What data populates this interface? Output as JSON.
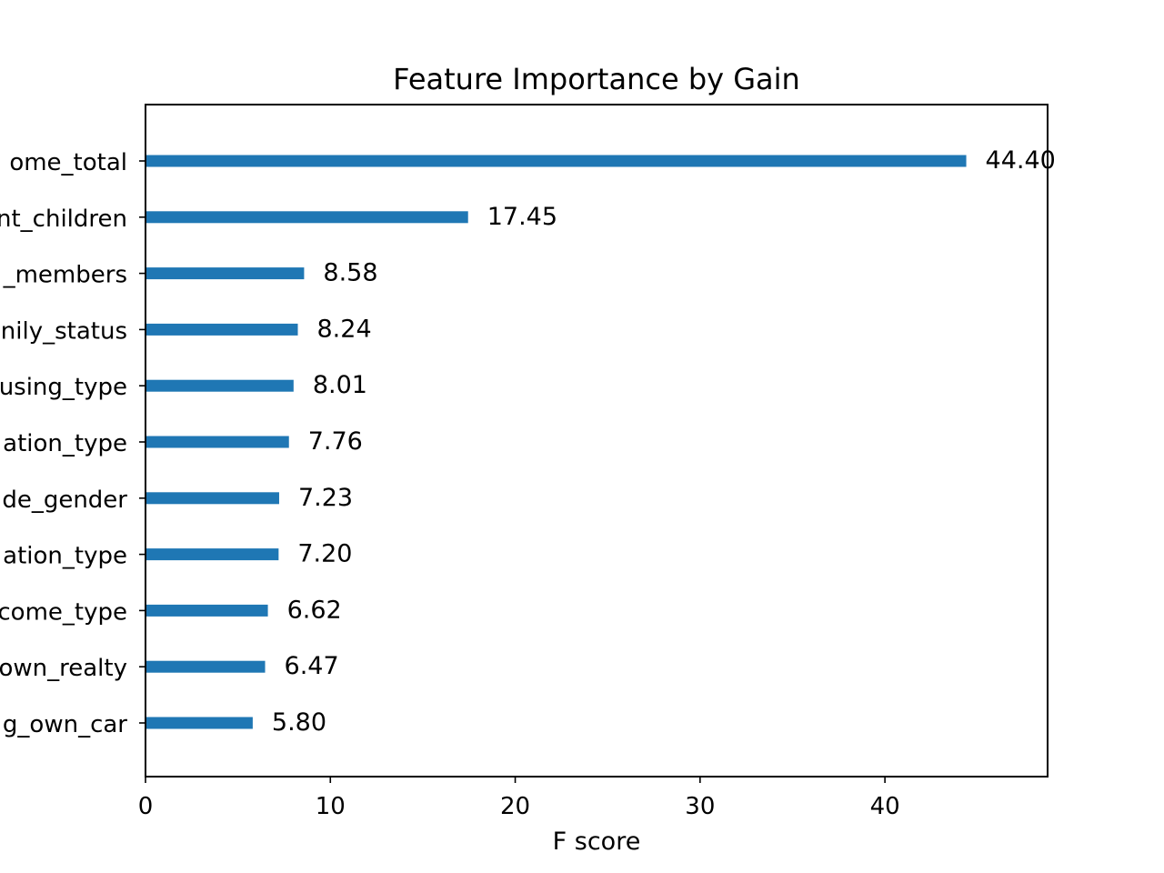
{
  "chart_data": {
    "type": "bar",
    "orientation": "horizontal",
    "title": "Feature Importance by Gain",
    "xlabel": "F score",
    "ylabel": "",
    "xlim": [
      0,
      48.8
    ],
    "xticks": [
      0,
      10,
      20,
      30,
      40
    ],
    "xtick_labels": [
      "0",
      "10",
      "20",
      "30",
      "40"
    ],
    "categories": [
      "ome_total",
      "nt_children",
      "_members",
      "nily_status",
      "using_type",
      "ation_type",
      "de_gender",
      "ation_type",
      "come_type",
      "own_realty",
      "g_own_car"
    ],
    "values": [
      44.4,
      17.45,
      8.58,
      8.24,
      8.01,
      7.76,
      7.23,
      7.2,
      6.62,
      6.47,
      5.8
    ],
    "value_labels": [
      "44.40",
      "17.45",
      "8.58",
      "8.24",
      "8.01",
      "7.76",
      "7.23",
      "7.20",
      "6.62",
      "6.47",
      "5.80"
    ],
    "bar_color": "#1f77b4",
    "grid": false,
    "legend": "none"
  }
}
